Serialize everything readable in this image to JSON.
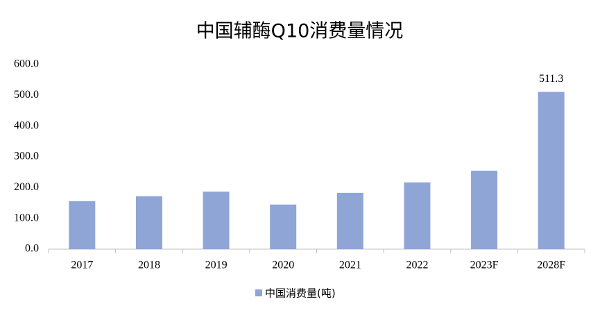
{
  "chart_data": {
    "type": "bar",
    "title": "中国辅酶Q10消费量情况",
    "categories": [
      "2017",
      "2018",
      "2019",
      "2020",
      "2021",
      "2022",
      "2023F",
      "2028F"
    ],
    "series": [
      {
        "name": "中国消费量(吨)",
        "color": "#8fa5d5",
        "values": [
          156,
          172,
          187,
          145,
          183,
          217,
          255,
          511.3
        ],
        "value_labels": [
          null,
          null,
          null,
          null,
          null,
          null,
          null,
          "511.3"
        ]
      }
    ],
    "ylim": [
      0,
      600
    ],
    "yticks": [
      {
        "value": 0,
        "label": "0.0"
      },
      {
        "value": 100,
        "label": "100.0"
      },
      {
        "value": 200,
        "label": "200.0"
      },
      {
        "value": 300,
        "label": "300.0"
      },
      {
        "value": 400,
        "label": "400.0"
      },
      {
        "value": 500,
        "label": "500.0"
      },
      {
        "value": 600,
        "label": "600.0"
      }
    ],
    "grid": false,
    "legend": "bottom"
  }
}
